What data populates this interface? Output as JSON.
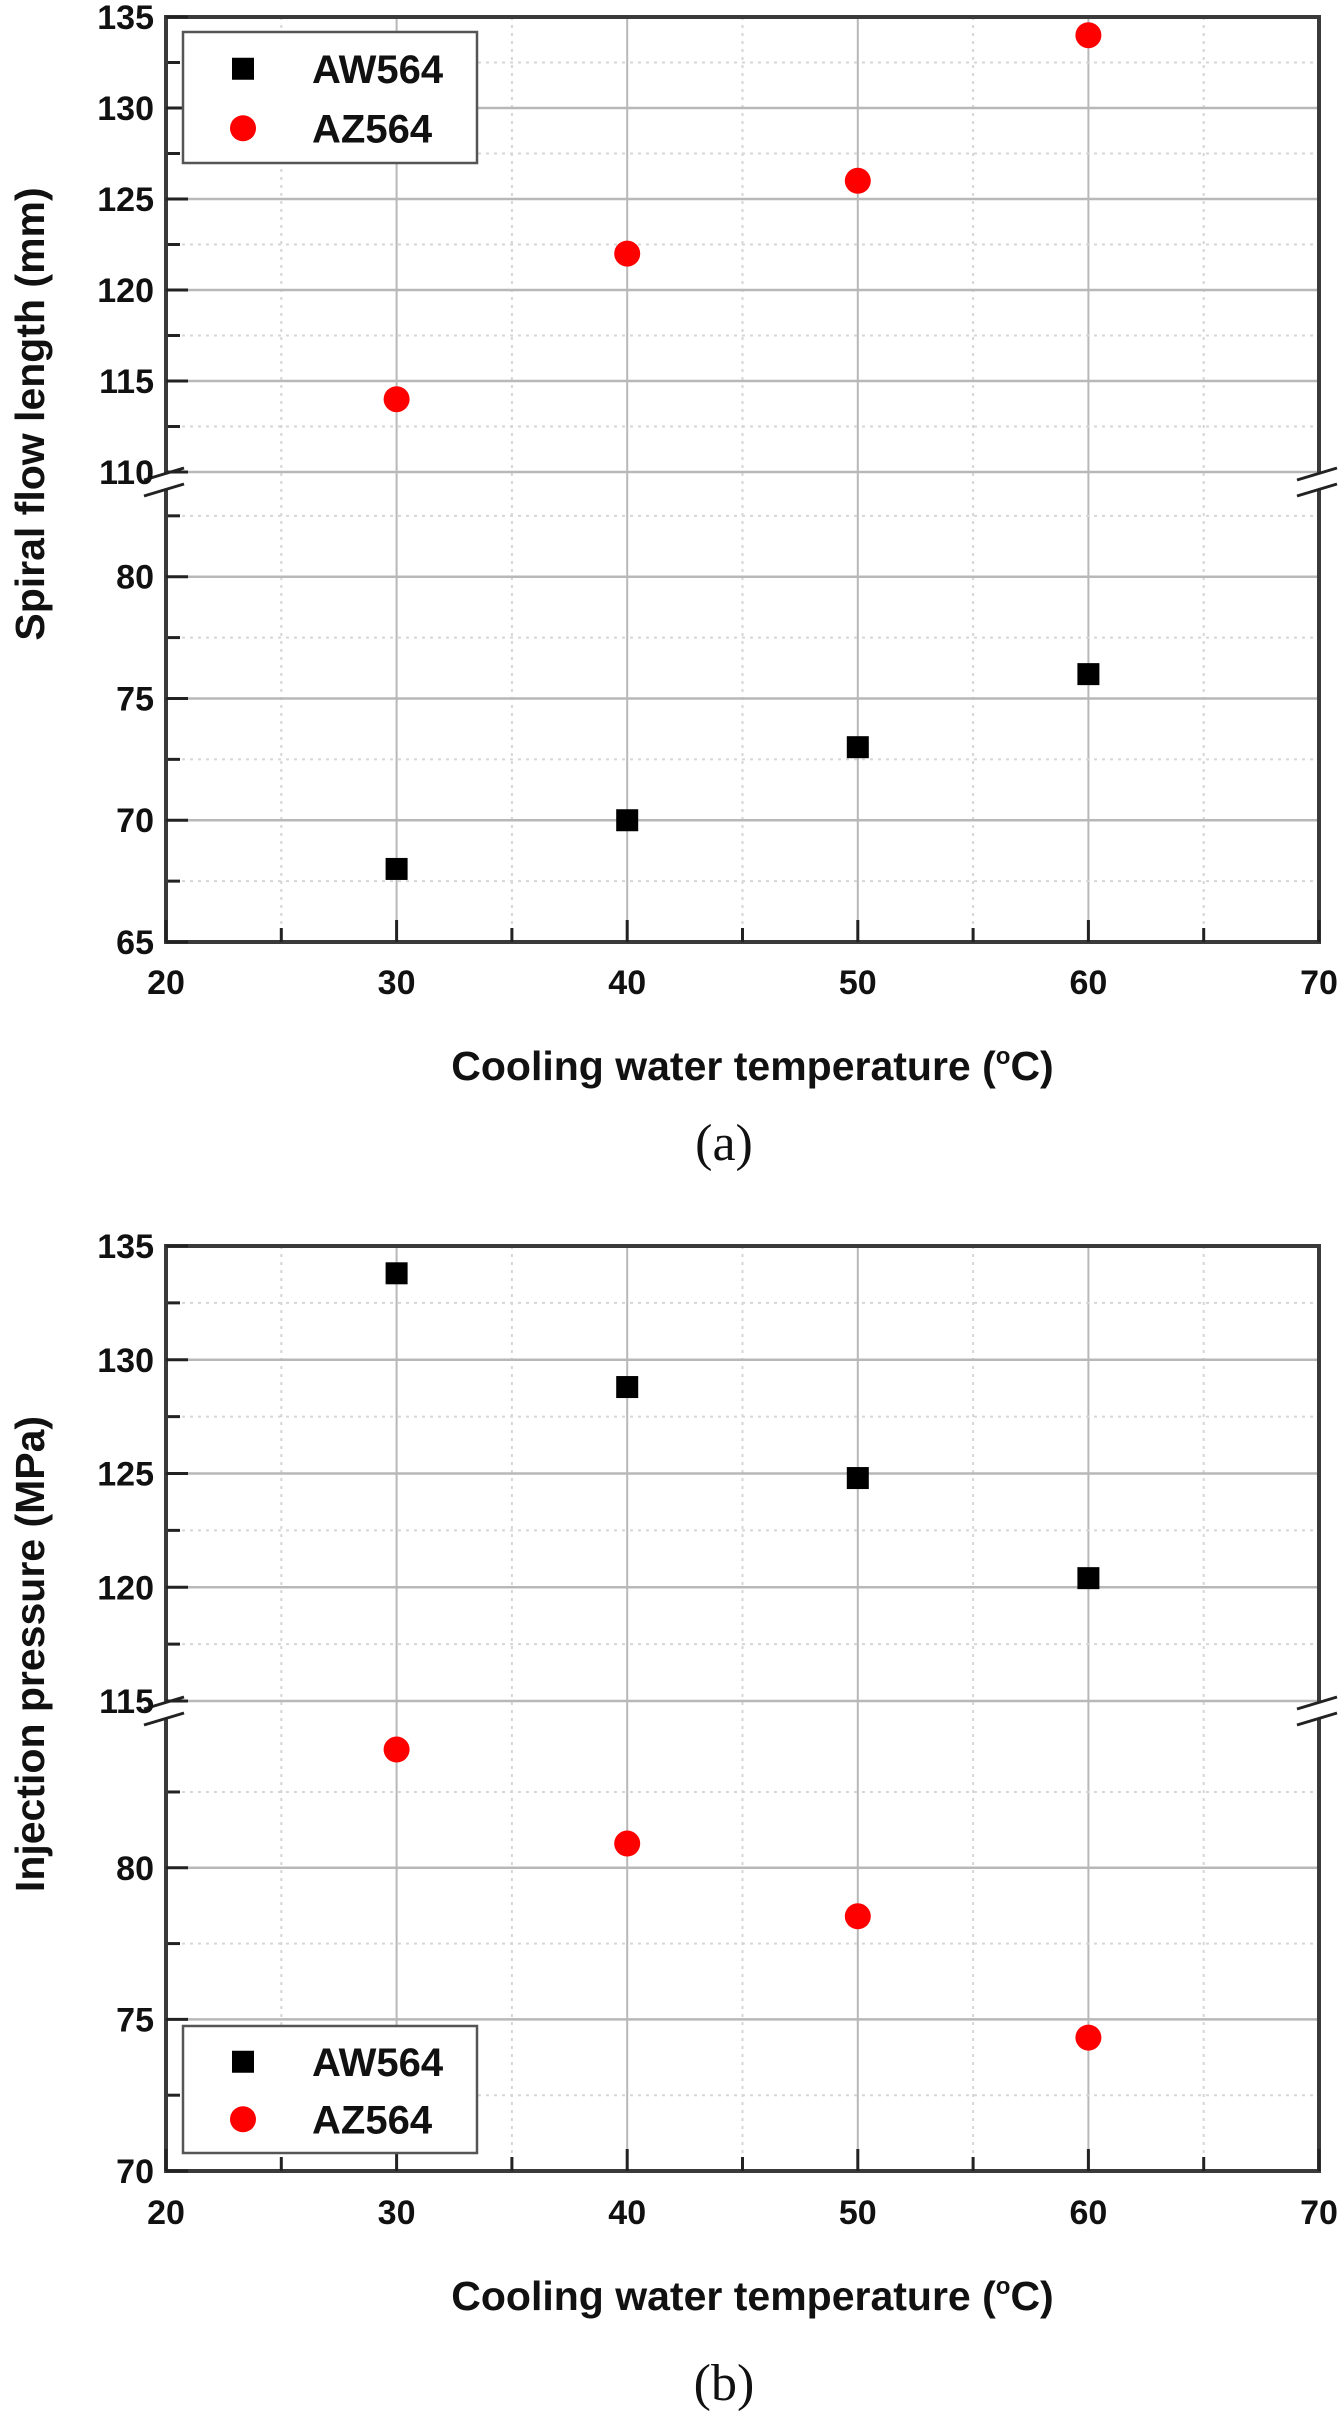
{
  "colors": {
    "AW564": "#000000",
    "AZ564": "#ff0000",
    "frame": "#3a3a3a",
    "grid_major": "#b8b8b8",
    "grid_minor": "#d6d6d6"
  },
  "chart_data": [
    {
      "type": "scatter",
      "caption": "(a)",
      "xlabel": "Cooling water temperature (°C)",
      "xlabel_main": "Cooling water temperature (",
      "xlabel_deg": "o",
      "xlabel_tail": "C)",
      "ylabel": "Spiral flow length (mm)",
      "xlim": [
        20,
        70
      ],
      "x_ticks": [
        20,
        30,
        40,
        50,
        60,
        70
      ],
      "x_tick_labels": [
        "20",
        "30",
        "40",
        "50",
        "60",
        "70"
      ],
      "y_axis_break": true,
      "y_segments": [
        {
          "range": [
            65,
            84.3
          ],
          "ticks": [
            65,
            70,
            75,
            80
          ],
          "tick_labels": [
            "65",
            "70",
            "75",
            "80"
          ]
        },
        {
          "range": [
            110,
            135
          ],
          "ticks": [
            110,
            115,
            120,
            125,
            130,
            135
          ],
          "tick_labels": [
            "110",
            "115",
            "120",
            "125",
            "130",
            "135"
          ]
        }
      ],
      "grid": true,
      "legend": {
        "position": "top-left",
        "entries": [
          "AW564",
          "AZ564"
        ]
      },
      "x": [
        30,
        40,
        50,
        60
      ],
      "series": [
        {
          "name": "AW564",
          "marker": "square",
          "values": [
            68,
            70,
            73,
            76
          ]
        },
        {
          "name": "AZ564",
          "marker": "circle",
          "values": [
            114,
            122,
            126,
            134
          ]
        }
      ]
    },
    {
      "type": "scatter",
      "caption": "(b)",
      "xlabel": "Cooling water temperature (°C)",
      "xlabel_main": "Cooling water temperature (",
      "xlabel_deg": "o",
      "xlabel_tail": "C)",
      "ylabel": "Injection pressure (MPa)",
      "xlim": [
        20,
        70
      ],
      "x_ticks": [
        20,
        30,
        40,
        50,
        60,
        70
      ],
      "x_tick_labels": [
        "20",
        "30",
        "40",
        "50",
        "60",
        "70"
      ],
      "y_axis_break": true,
      "y_segments": [
        {
          "range": [
            70,
            85.5
          ],
          "ticks": [
            70,
            75,
            80
          ],
          "tick_labels": [
            "70",
            "75",
            "80"
          ]
        },
        {
          "range": [
            115,
            135
          ],
          "ticks": [
            115,
            120,
            125,
            130,
            135
          ],
          "tick_labels": [
            "115",
            "120",
            "125",
            "130",
            "135"
          ]
        }
      ],
      "grid": true,
      "legend": {
        "position": "bottom-left",
        "entries": [
          "AW564",
          "AZ564"
        ]
      },
      "x": [
        30,
        40,
        50,
        60
      ],
      "series": [
        {
          "name": "AW564",
          "marker": "square",
          "values": [
            133.8,
            128.8,
            124.8,
            120.4
          ]
        },
        {
          "name": "AZ564",
          "marker": "circle",
          "values": [
            83.9,
            80.8,
            78.4,
            74.4
          ]
        }
      ]
    }
  ]
}
